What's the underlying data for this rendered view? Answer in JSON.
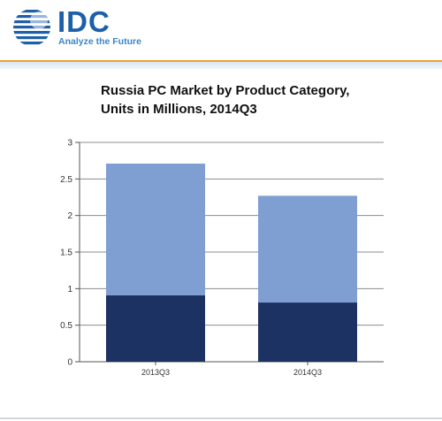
{
  "header": {
    "logo_text": "IDC",
    "tagline": "Analyze the Future"
  },
  "chart_data": {
    "type": "bar",
    "stacked": true,
    "title_lines": [
      "Russia PC Market by Product Category,",
      "Units in Millions, 2014Q3"
    ],
    "categories": [
      "2013Q3",
      "2014Q3"
    ],
    "series": [
      {
        "values": [
          0.91,
          0.81
        ],
        "color": "#1c3262"
      },
      {
        "values": [
          1.8,
          1.46
        ],
        "color": "#7f9fd3"
      }
    ],
    "ylim": [
      0,
      3
    ],
    "yticks": [
      "0",
      "0.5",
      "1",
      "1.5",
      "2",
      "2.5",
      "3"
    ],
    "grid": true,
    "xlabel": "",
    "ylabel": ""
  }
}
